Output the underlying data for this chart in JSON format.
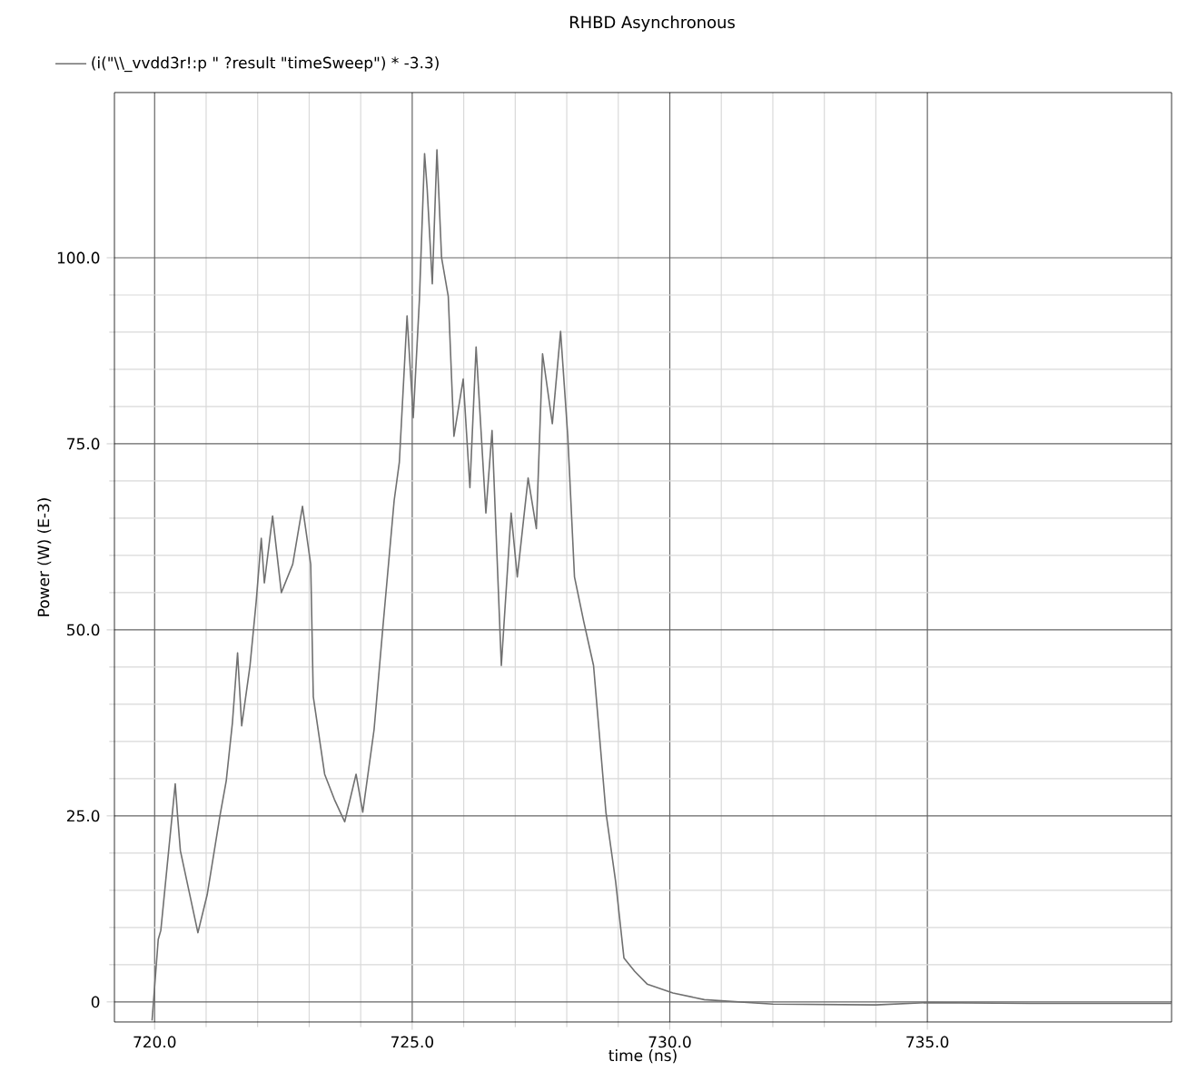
{
  "chart_data": {
    "type": "line",
    "title": "RHBD Asynchronous",
    "xlabel": "time (ns)",
    "ylabel": "Power (W) (E-3)",
    "xlim": [
      719.22,
      739.74
    ],
    "ylim": [
      -2.7,
      122.2
    ],
    "xticks": [
      {
        "value": 720,
        "label": "720.0"
      },
      {
        "value": 725,
        "label": "725.0"
      },
      {
        "value": 730,
        "label": "730.0"
      },
      {
        "value": 735,
        "label": "735.0"
      }
    ],
    "yticks": [
      0,
      {
        "value": 25,
        "label": "25.0"
      },
      {
        "value": 50,
        "label": "50.0"
      },
      {
        "value": 75,
        "label": "75.0"
      },
      {
        "value": 100,
        "label": "100.0"
      }
    ],
    "grid": true,
    "legend": "top left",
    "series": [
      {
        "name": "(i(\"\\\\_vvdd3r!:p \" ?result \"timeSweep\") * -3.3)",
        "color": "#707070",
        "x": [
          719.95,
          720.07,
          720.12,
          720.4,
          720.45,
          720.5,
          720.84,
          721.02,
          721.27,
          721.39,
          721.51,
          721.61,
          721.69,
          721.85,
          721.97,
          722.07,
          722.13,
          722.29,
          722.46,
          722.68,
          722.87,
          723.03,
          723.08,
          723.3,
          723.49,
          723.69,
          723.91,
          724.04,
          724.26,
          724.43,
          724.65,
          724.75,
          724.9,
          725.02,
          725.14,
          725.24,
          725.29,
          725.39,
          725.48,
          725.57,
          725.7,
          725.81,
          725.99,
          726.12,
          726.24,
          726.43,
          726.55,
          726.73,
          726.92,
          727.04,
          727.25,
          727.41,
          727.53,
          727.72,
          727.88,
          728.02,
          728.15,
          728.33,
          728.52,
          728.76,
          728.95,
          729.11,
          729.32,
          729.56,
          730.06,
          730.67,
          732,
          734,
          735,
          737,
          739.74
        ],
        "values": [
          -2.5,
          8.4,
          9.6,
          29.3,
          24.6,
          20.3,
          9.3,
          14.4,
          25.1,
          29.7,
          37.5,
          46.9,
          37.1,
          45.1,
          53.7,
          62.3,
          56.3,
          65.3,
          55.0,
          58.8,
          66.6,
          58.8,
          41.0,
          30.6,
          27.2,
          24.2,
          30.6,
          25.5,
          36.6,
          50.3,
          67.4,
          72.5,
          92.2,
          78.5,
          94.4,
          114.0,
          109.3,
          96.5,
          114.5,
          100.0,
          94.8,
          76.0,
          83.7,
          69.1,
          88.0,
          65.7,
          76.8,
          45.2,
          65.7,
          57.1,
          70.4,
          63.6,
          87.1,
          77.7,
          90.1,
          76.0,
          57.1,
          51.1,
          45.2,
          25.5,
          16.1,
          5.9,
          4.1,
          2.4,
          1.2,
          0.3,
          -0.3,
          -0.4,
          -0.1,
          -0.2,
          -0.2
        ]
      }
    ]
  }
}
